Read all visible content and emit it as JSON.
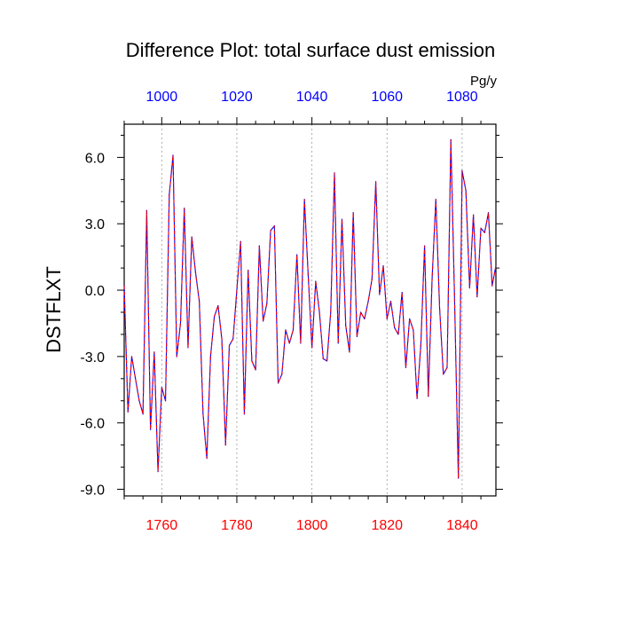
{
  "chart_data": {
    "type": "line",
    "title": "Difference Plot: total surface dust emission",
    "units": "Pg/y",
    "ylabel": "DSTFLXT",
    "xlabel": "",
    "ylim": [
      -9.3,
      7.5
    ],
    "yticks": [
      -9.0,
      -6.0,
      -3.0,
      0.0,
      3.0,
      6.0
    ],
    "ytick_labels": [
      "-9.0",
      "-6.0",
      "-3.0",
      "0.0",
      "3.0",
      "6.0"
    ],
    "x_bottom": {
      "range": [
        1750,
        1849
      ],
      "ticks": [
        1760,
        1780,
        1800,
        1820,
        1840
      ],
      "tick_labels": [
        "1760",
        "1780",
        "1800",
        "1820",
        "1840"
      ],
      "color": "#ff0000"
    },
    "x_top": {
      "range": [
        990,
        1089
      ],
      "ticks": [
        1000,
        1020,
        1040,
        1060,
        1080
      ],
      "tick_labels": [
        "1000",
        "1020",
        "1040",
        "1060",
        "1080"
      ],
      "color": "#0000ff"
    },
    "grid": "vertical dotted at major bottom ticks",
    "series": [
      {
        "name": "difference",
        "line_style": "dashed",
        "colors": [
          "#0000ff",
          "#ff0000"
        ],
        "x": [
          1750,
          1751,
          1752,
          1753,
          1754,
          1755,
          1756,
          1757,
          1758,
          1759,
          1760,
          1761,
          1762,
          1763,
          1764,
          1765,
          1766,
          1767,
          1768,
          1769,
          1770,
          1771,
          1772,
          1773,
          1774,
          1775,
          1776,
          1777,
          1778,
          1779,
          1780,
          1781,
          1782,
          1783,
          1784,
          1785,
          1786,
          1787,
          1788,
          1789,
          1790,
          1791,
          1792,
          1793,
          1794,
          1795,
          1796,
          1797,
          1798,
          1799,
          1800,
          1801,
          1802,
          1803,
          1804,
          1805,
          1806,
          1807,
          1808,
          1809,
          1810,
          1811,
          1812,
          1813,
          1814,
          1815,
          1816,
          1817,
          1818,
          1819,
          1820,
          1821,
          1822,
          1823,
          1824,
          1825,
          1826,
          1827,
          1828,
          1829,
          1830,
          1831,
          1832,
          1833,
          1834,
          1835,
          1836,
          1837,
          1838,
          1839,
          1840,
          1841,
          1842,
          1843,
          1844,
          1845,
          1846,
          1847,
          1848,
          1849
        ],
        "values": [
          0.2,
          -5.5,
          -3.0,
          -4.0,
          -5.0,
          -5.6,
          3.6,
          -6.3,
          -2.8,
          -8.2,
          -4.4,
          -5.0,
          4.3,
          6.1,
          -3.0,
          -1.5,
          3.7,
          -2.6,
          2.4,
          0.8,
          -0.5,
          -5.6,
          -7.6,
          -3.0,
          -1.2,
          -0.7,
          -2.2,
          -7.0,
          -2.5,
          -2.2,
          0.0,
          2.2,
          -5.6,
          0.9,
          -3.2,
          -3.6,
          2.0,
          -1.4,
          -0.6,
          2.7,
          2.9,
          -4.2,
          -3.8,
          -1.8,
          -2.4,
          -1.8,
          1.6,
          -2.4,
          4.1,
          0.7,
          -2.6,
          0.4,
          -1.0,
          -3.1,
          -3.2,
          -1.0,
          5.3,
          -2.4,
          3.2,
          -1.6,
          -2.8,
          3.5,
          -2.1,
          -1.0,
          -1.3,
          -0.5,
          0.5,
          4.9,
          -0.2,
          1.1,
          -1.3,
          -0.5,
          -1.7,
          -2.0,
          -0.1,
          -3.5,
          -1.3,
          -1.8,
          -4.9,
          -2.5,
          2.0,
          -4.8,
          0.5,
          4.1,
          -0.8,
          -3.8,
          -3.5,
          6.8,
          -0.5,
          -8.5,
          5.4,
          4.5,
          0.1,
          3.4,
          -0.3,
          2.8,
          2.6,
          3.5,
          0.2,
          1.1
        ]
      }
    ]
  }
}
